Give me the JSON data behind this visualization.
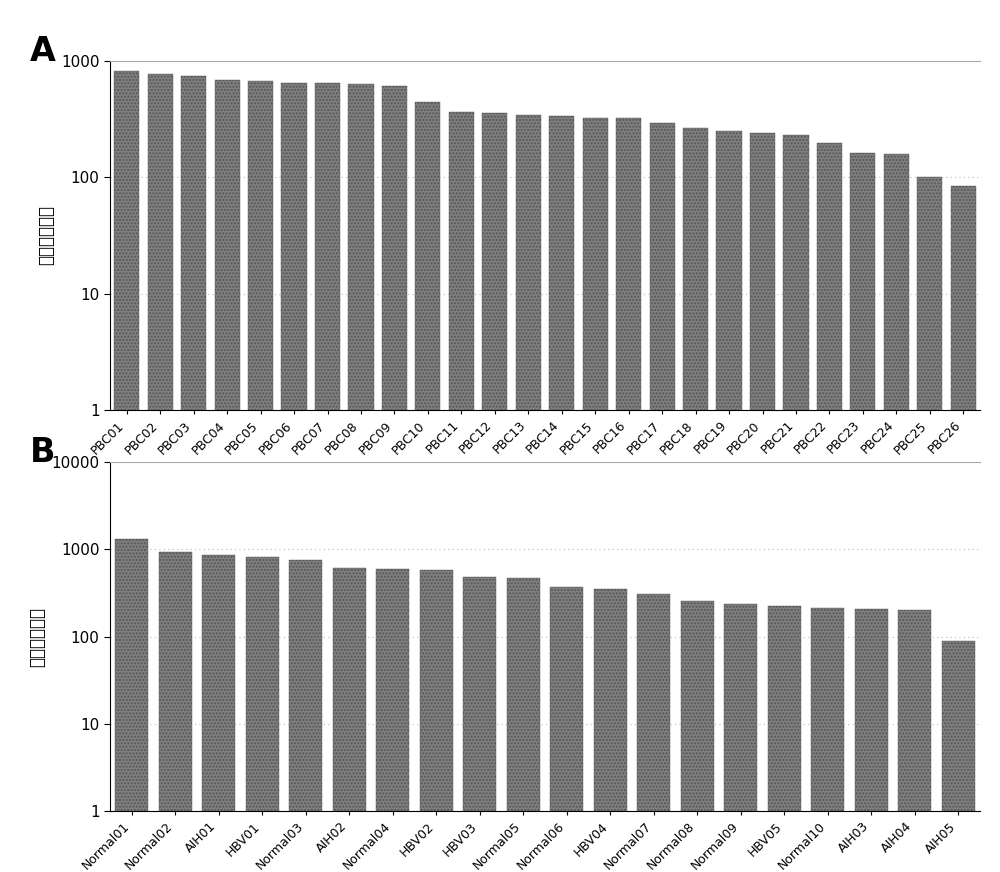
{
  "panel_A": {
    "categories": [
      "PBC01",
      "PBC02",
      "PBC03",
      "PBC04",
      "PBC05",
      "PBC06",
      "PBC07",
      "PBC08",
      "PBC09",
      "PBC10",
      "PBC11",
      "PBC12",
      "PBC13",
      "PBC14",
      "PBC15",
      "PBC16",
      "PBC17",
      "PBC18",
      "PBC19",
      "PBC20",
      "PBC21",
      "PBC22",
      "PBC23",
      "PBC24",
      "PBC25",
      "PBC26"
    ],
    "values": [
      820,
      775,
      740,
      690,
      670,
      650,
      645,
      635,
      615,
      445,
      365,
      355,
      345,
      335,
      325,
      325,
      295,
      265,
      250,
      242,
      232,
      198,
      163,
      158,
      100,
      84
    ],
    "ylabel": "阳性探针个数",
    "ylim_min": 1,
    "ylim_max": 1000,
    "yticks": [
      1,
      10,
      100,
      1000
    ],
    "label": "A"
  },
  "panel_B": {
    "categories": [
      "Normal01",
      "Normal02",
      "AIH01",
      "HBV01",
      "Normal03",
      "AIH02",
      "Normal04",
      "HBV02",
      "HBV03",
      "Normal05",
      "Normal06",
      "HBV04",
      "Normal07",
      "Normal08",
      "Normal09",
      "HBV05",
      "Normal10",
      "AIH03",
      "AIH04",
      "AIH05"
    ],
    "values": [
      1300,
      940,
      860,
      810,
      750,
      610,
      600,
      580,
      480,
      470,
      370,
      350,
      310,
      255,
      235,
      225,
      210,
      205,
      200,
      88
    ],
    "ylabel": "阳性探针个数",
    "ylim_min": 1,
    "ylim_max": 10000,
    "yticks": [
      1,
      10,
      100,
      1000,
      10000
    ],
    "label": "B"
  },
  "bar_color": "#7f7f7f",
  "bar_hatch": ".....",
  "background_color": "#ffffff",
  "grid_color": "#bbbbbb",
  "label_fontsize": 24,
  "tick_fontsize": 9,
  "ylabel_fontsize": 12
}
